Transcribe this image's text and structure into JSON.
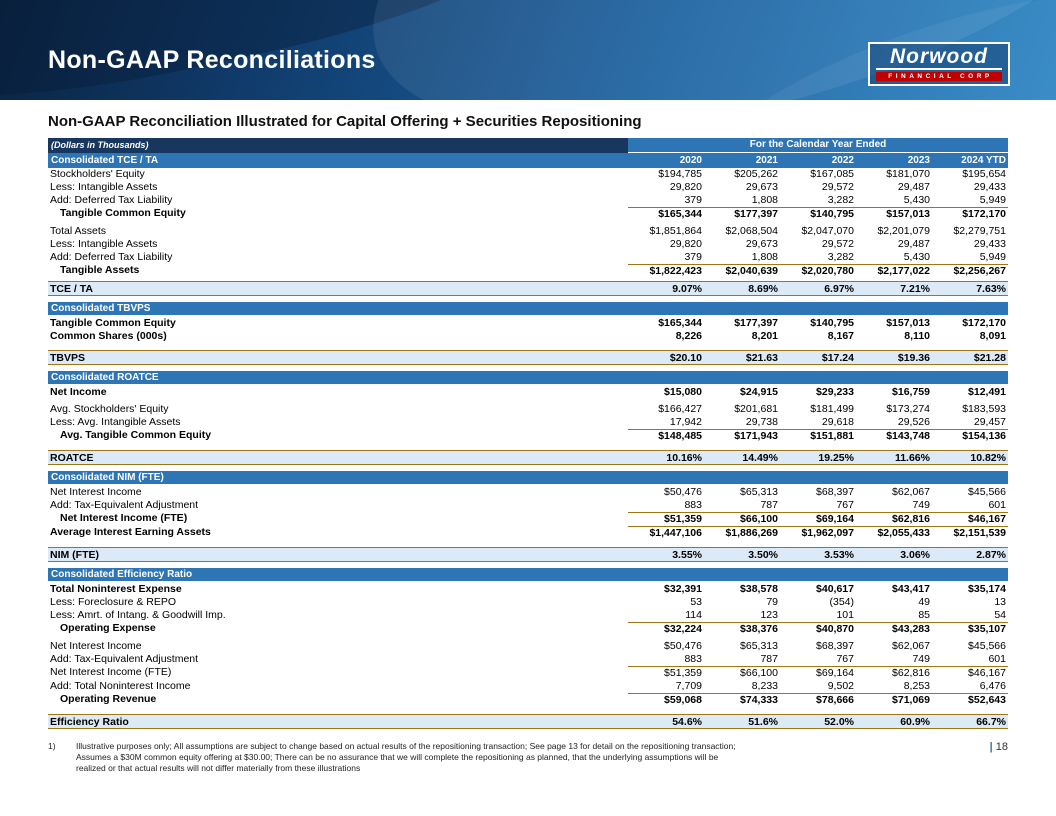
{
  "banner": {
    "title": "Non-GAAP Reconciliations",
    "logo_name": "Norwood",
    "logo_sub": "FINANCIAL CORP"
  },
  "subtitle": "Non-GAAP Reconciliation Illustrated for Capital Offering + Securities Repositioning",
  "table": {
    "dollars_note": "(Dollars in Thousands)",
    "period_header": "For the Calendar Year Ended",
    "first_section": "Consolidated TCE / TA",
    "years": [
      "2020",
      "2021",
      "2022",
      "2023",
      "2024 YTD"
    ],
    "sections": [
      {
        "title": null,
        "rows": [
          {
            "style": "normal",
            "label": "Stockholders' Equity",
            "values": [
              "$194,785",
              "$205,262",
              "$167,085",
              "$181,070",
              "$195,654"
            ]
          },
          {
            "style": "normal",
            "label": "Less: Intangible Assets",
            "values": [
              "29,820",
              "29,673",
              "29,572",
              "29,487",
              "29,433"
            ]
          },
          {
            "style": "normal",
            "label": "Add: Deferred Tax Liability",
            "values": [
              "379",
              "1,808",
              "3,282",
              "5,430",
              "5,949"
            ]
          },
          {
            "style": "subtotal",
            "label": "Tangible Common Equity",
            "values": [
              "$165,344",
              "$177,397",
              "$140,795",
              "$157,013",
              "$172,170"
            ]
          },
          {
            "style": "gap"
          },
          {
            "style": "normal",
            "label": "Total Assets",
            "values": [
              "$1,851,864",
              "$2,068,504",
              "$2,047,070",
              "$2,201,079",
              "$2,279,751"
            ]
          },
          {
            "style": "normal",
            "label": "Less: Intangible Assets",
            "values": [
              "29,820",
              "29,673",
              "29,572",
              "29,487",
              "29,433"
            ]
          },
          {
            "style": "normal",
            "label": "Add: Deferred Tax Liability",
            "values": [
              "379",
              "1,808",
              "3,282",
              "5,430",
              "5,949"
            ]
          },
          {
            "style": "subtotal",
            "label": "Tangible Assets",
            "values": [
              "$1,822,423",
              "$2,040,639",
              "$2,020,780",
              "$2,177,022",
              "$2,256,267"
            ]
          },
          {
            "style": "ratio",
            "label": "TCE / TA",
            "values": [
              "9.07%",
              "8.69%",
              "6.97%",
              "7.21%",
              "7.63%"
            ]
          }
        ]
      },
      {
        "title": "Consolidated TBVPS",
        "rows": [
          {
            "style": "bold",
            "label": "Tangible Common Equity",
            "values": [
              "$165,344",
              "$177,397",
              "$140,795",
              "$157,013",
              "$172,170"
            ]
          },
          {
            "style": "bold",
            "label": "Common Shares (000s)",
            "values": [
              "8,226",
              "8,201",
              "8,167",
              "8,110",
              "8,091"
            ]
          },
          {
            "style": "gap"
          },
          {
            "style": "ratio",
            "label": "TBVPS",
            "values": [
              "$20.10",
              "$21.63",
              "$17.24",
              "$19.36",
              "$21.28"
            ]
          }
        ]
      },
      {
        "title": "Consolidated ROATCE",
        "rows": [
          {
            "style": "bold",
            "label": "Net Income",
            "values": [
              "$15,080",
              "$24,915",
              "$29,233",
              "$16,759",
              "$12,491"
            ]
          },
          {
            "style": "gap"
          },
          {
            "style": "normal",
            "label": "Avg. Stockholders' Equity",
            "values": [
              "$166,427",
              "$201,681",
              "$181,499",
              "$173,274",
              "$183,593"
            ]
          },
          {
            "style": "normal",
            "label": "Less: Avg. Intangible Assets",
            "values": [
              "17,942",
              "29,738",
              "29,618",
              "29,526",
              "29,457"
            ]
          },
          {
            "style": "subtotal",
            "label": "Avg. Tangible Common Equity",
            "values": [
              "$148,485",
              "$171,943",
              "$151,881",
              "$143,748",
              "$154,136"
            ]
          },
          {
            "style": "gap"
          },
          {
            "style": "ratio",
            "label": "ROATCE",
            "values": [
              "10.16%",
              "14.49%",
              "19.25%",
              "11.66%",
              "10.82%"
            ]
          }
        ]
      },
      {
        "title": "Consolidated NIM (FTE)",
        "rows": [
          {
            "style": "normal",
            "label": "Net Interest Income",
            "values": [
              "$50,476",
              "$65,313",
              "$68,397",
              "$62,067",
              "$45,566"
            ]
          },
          {
            "style": "normal",
            "label": "Add: Tax-Equivalent Adjustment",
            "values": [
              "883",
              "787",
              "767",
              "749",
              "601"
            ]
          },
          {
            "style": "subtotal",
            "label": "Net Interest Income (FTE)",
            "values": [
              "$51,359",
              "$66,100",
              "$69,164",
              "$62,816",
              "$46,167"
            ]
          },
          {
            "style": "subtotal-flat",
            "label": "Average Interest Earning Assets",
            "values": [
              "$1,447,106",
              "$1,886,269",
              "$1,962,097",
              "$2,055,433",
              "$2,151,539"
            ]
          },
          {
            "style": "gap"
          },
          {
            "style": "ratio",
            "label": "NIM (FTE)",
            "values": [
              "3.55%",
              "3.50%",
              "3.53%",
              "3.06%",
              "2.87%"
            ]
          }
        ]
      },
      {
        "title": "Consolidated Efficiency Ratio",
        "rows": [
          {
            "style": "bold",
            "label": "Total Noninterest Expense",
            "values": [
              "$32,391",
              "$38,578",
              "$40,617",
              "$43,417",
              "$35,174"
            ]
          },
          {
            "style": "normal",
            "label": "Less: Foreclosure & REPO",
            "values": [
              "53",
              "79",
              "(354)",
              "49",
              "13"
            ]
          },
          {
            "style": "normal",
            "label": "Less: Amrt. of Intang. & Goodwill Imp.",
            "values": [
              "114",
              "123",
              "101",
              "85",
              "54"
            ]
          },
          {
            "style": "subtotal",
            "label": "Operating Expense",
            "values": [
              "$32,224",
              "$38,376",
              "$40,870",
              "$43,283",
              "$35,107"
            ]
          },
          {
            "style": "gap"
          },
          {
            "style": "normal",
            "label": "Net Interest Income",
            "values": [
              "$50,476",
              "$65,313",
              "$68,397",
              "$62,067",
              "$45,566"
            ]
          },
          {
            "style": "normal",
            "label": "Add: Tax-Equivalent Adjustment",
            "values": [
              "883",
              "787",
              "767",
              "749",
              "601"
            ]
          },
          {
            "style": "line",
            "label": "Net Interest Income (FTE)",
            "values": [
              "$51,359",
              "$66,100",
              "$69,164",
              "$62,816",
              "$46,167"
            ]
          },
          {
            "style": "normal",
            "label": "Add: Total Noninterest Income",
            "values": [
              "7,709",
              "8,233",
              "9,502",
              "8,253",
              "6,476"
            ]
          },
          {
            "style": "subtotal",
            "label": "Operating Revenue",
            "values": [
              "$59,068",
              "$74,333",
              "$78,666",
              "$71,069",
              "$52,643"
            ]
          },
          {
            "style": "gap"
          },
          {
            "style": "ratio",
            "label": "Efficiency Ratio",
            "values": [
              "54.6%",
              "51.6%",
              "52.0%",
              "60.9%",
              "66.7%"
            ]
          }
        ]
      }
    ]
  },
  "footnote": {
    "marker": "1)",
    "text": "Illustrative purposes only; All assumptions are subject to change based on actual results of the repositioning transaction; See page 13 for detail on the repositioning transaction; Assumes a $30M common equity offering at $30.00; There can be no assurance that we will complete the repositioning as planned, that the underlying assumptions will be realized or that actual results will not differ materially from these illustrations"
  },
  "page_number": "18",
  "colors": {
    "banner_dark": "#0a2342",
    "banner_light": "#2e86c4",
    "section_bar": "#2E75B6",
    "header_navy": "#17375E",
    "ratio_highlight": "#DCE9F7",
    "rule_gold": "#9c7714",
    "logo_red": "#c00000"
  }
}
